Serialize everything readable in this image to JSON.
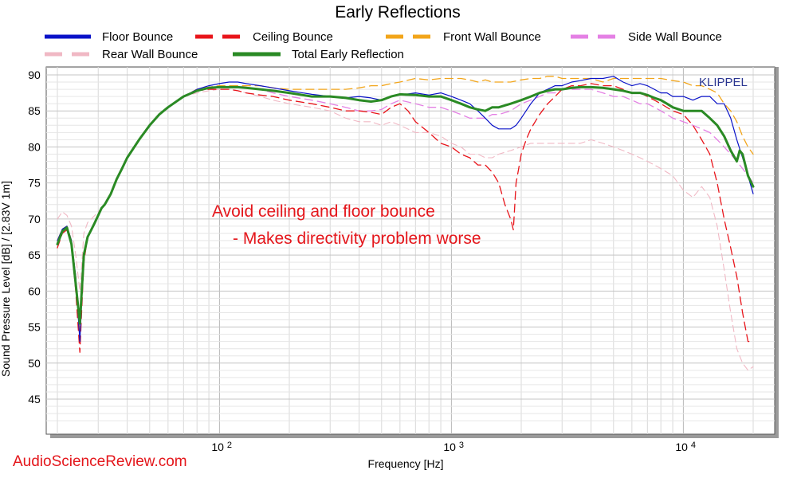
{
  "colors": {
    "floor": "#0a12c8",
    "ceiling": "#e8141a",
    "front": "#f2a51a",
    "side": "#e480e4",
    "rear": "#f0b8c4",
    "total": "#2a8a24",
    "annotation": "#e4161b",
    "watermark": "#2a3590"
  },
  "annotation": {
    "line1": "Avoid ceiling and floor bounce",
    "line2": "- Makes directivity problem worse"
  },
  "watermark": "KLIPPEL",
  "credit": "AudioScienceReview.com",
  "chart_data": {
    "type": "line",
    "title": "Early Reflections",
    "xlabel": "Frequency [Hz]",
    "ylabel": "Sound Pressure Level [dB]  / [2.83V 1m]",
    "x_scale": "log",
    "xlim": [
      20,
      20000
    ],
    "ylim": [
      42,
      91
    ],
    "x_ticks": [
      {
        "value": 100,
        "base": "10",
        "exp": "2"
      },
      {
        "value": 1000,
        "base": "10",
        "exp": "3"
      },
      {
        "value": 10000,
        "base": "10",
        "exp": "4"
      }
    ],
    "y_ticks": [
      "45",
      "50",
      "55",
      "60",
      "65",
      "70",
      "75",
      "80",
      "85",
      "90"
    ],
    "y_tick_values": [
      45,
      50,
      55,
      60,
      65,
      70,
      75,
      80,
      85,
      90
    ],
    "grid": true,
    "legend": "top",
    "series": [
      {
        "name": "Floor Bounce",
        "key": "floor",
        "dash": "",
        "width": 1.2,
        "x": [
          20,
          21,
          22,
          23,
          24,
          25,
          26,
          27,
          28,
          29,
          30,
          31,
          32,
          34,
          36,
          38,
          40,
          45,
          50,
          55,
          60,
          70,
          80,
          90,
          100,
          110,
          120,
          130,
          150,
          170,
          200,
          250,
          300,
          350,
          400,
          450,
          500,
          550,
          600,
          700,
          800,
          900,
          1000,
          1100,
          1200,
          1300,
          1400,
          1500,
          1600,
          1700,
          1800,
          1900,
          2000,
          2200,
          2400,
          2600,
          2800,
          3000,
          3300,
          3600,
          4000,
          4500,
          5000,
          5500,
          6000,
          6500,
          7000,
          7500,
          8000,
          8500,
          9000,
          10000,
          11000,
          12000,
          13000,
          14000,
          15000,
          16000,
          17000,
          18000,
          19000,
          20000
        ],
        "y": [
          67,
          68.6,
          69,
          67,
          62,
          53,
          65,
          67.5,
          68.5,
          69.5,
          70.5,
          71.5,
          72,
          73.5,
          75.5,
          77,
          78.5,
          81,
          83,
          84.5,
          85.5,
          87,
          88,
          88.5,
          88.8,
          89,
          89,
          88.8,
          88.5,
          88.2,
          87.8,
          87.3,
          87,
          86.8,
          87,
          86.8,
          86.5,
          87,
          87.2,
          87.5,
          87.2,
          87.5,
          87,
          86.5,
          86,
          85,
          84,
          83,
          82.5,
          82.5,
          82.5,
          83,
          84,
          86,
          87.5,
          88,
          88.5,
          88.5,
          89,
          89.2,
          89.5,
          89.5,
          89.8,
          89,
          88.5,
          88.8,
          88.5,
          88,
          87.5,
          87.5,
          87,
          87,
          86.5,
          87,
          87,
          86,
          86,
          84,
          81,
          78.5,
          76,
          73.5
        ]
      },
      {
        "name": "Ceiling Bounce",
        "key": "ceiling",
        "dash": "10,6",
        "width": 1.3,
        "x": [
          20,
          21,
          22,
          23,
          24,
          25,
          26,
          27,
          28,
          29,
          30,
          31,
          32,
          34,
          36,
          38,
          40,
          45,
          50,
          55,
          60,
          70,
          80,
          90,
          100,
          110,
          120,
          130,
          150,
          170,
          200,
          250,
          300,
          350,
          400,
          450,
          500,
          550,
          600,
          650,
          700,
          800,
          900,
          1000,
          1100,
          1200,
          1300,
          1400,
          1500,
          1600,
          1700,
          1800,
          1850,
          1900,
          1950,
          2000,
          2100,
          2200,
          2400,
          2600,
          2800,
          3000,
          3300,
          3600,
          4000,
          4500,
          5000,
          5500,
          6000,
          6500,
          7000,
          7500,
          8000,
          9000,
          10000,
          11000,
          12000,
          13000,
          14000,
          15000,
          16000,
          17000,
          18000,
          18500,
          19000,
          19500,
          20000
        ],
        "y": [
          66,
          68,
          68.5,
          66.5,
          60,
          51.5,
          64,
          67.5,
          68.5,
          69.5,
          70.5,
          71.5,
          72,
          73.5,
          75.5,
          77,
          78.5,
          81,
          83,
          84.5,
          85.5,
          87,
          87.8,
          88,
          88,
          88,
          87.8,
          87.5,
          87.2,
          87,
          86.5,
          86,
          85.5,
          85,
          85,
          84.8,
          84.5,
          85.5,
          86,
          85,
          83.5,
          82,
          80.5,
          80,
          79,
          78.5,
          77.5,
          77.5,
          76.5,
          75,
          72,
          70,
          68.5,
          75,
          77,
          79,
          81,
          82.5,
          84.5,
          86,
          87,
          88,
          88.5,
          88.5,
          88.8,
          88.5,
          88.5,
          88,
          87.5,
          87.5,
          87,
          86.5,
          86,
          85,
          84.5,
          83,
          81,
          79,
          75,
          70,
          66,
          62,
          57,
          55,
          53,
          53,
          53
        ]
      },
      {
        "name": "Front Wall Bounce",
        "key": "front",
        "dash": "10,6",
        "width": 1.3,
        "x": [
          20,
          21,
          22,
          23,
          24,
          25,
          26,
          27,
          28,
          29,
          30,
          31,
          32,
          34,
          36,
          38,
          40,
          45,
          50,
          55,
          60,
          70,
          80,
          90,
          100,
          110,
          120,
          130,
          150,
          170,
          200,
          250,
          300,
          350,
          400,
          450,
          500,
          550,
          600,
          700,
          800,
          900,
          1000,
          1100,
          1200,
          1300,
          1400,
          1500,
          1600,
          1800,
          2000,
          2200,
          2400,
          2600,
          2800,
          3000,
          3300,
          3600,
          4000,
          4500,
          5000,
          5500,
          6000,
          6500,
          7000,
          7500,
          8000,
          9000,
          10000,
          11000,
          12000,
          13000,
          14000,
          15000,
          16000,
          17000,
          18000,
          19000,
          20000
        ],
        "y": [
          67,
          68.6,
          69,
          67,
          62,
          54,
          65,
          67.5,
          68.5,
          69.5,
          70.5,
          71.5,
          72,
          73.5,
          75.5,
          77,
          78.5,
          81,
          83,
          84.5,
          85.5,
          87,
          88,
          88.3,
          88.5,
          88.5,
          88.5,
          88.5,
          88.5,
          88.2,
          88,
          88,
          88,
          88,
          88.2,
          88.5,
          88.5,
          88.8,
          89,
          89.5,
          89.3,
          89.5,
          89.5,
          89.5,
          89.3,
          89,
          89.3,
          89,
          89,
          89,
          89.3,
          89.5,
          89.5,
          89.8,
          89.8,
          89.5,
          89.5,
          89.5,
          89.5,
          89,
          89.5,
          89.5,
          89.5,
          89.5,
          89.5,
          89.5,
          89.5,
          89.2,
          89,
          88.5,
          88.5,
          88,
          87.5,
          86,
          85,
          83.5,
          81.5,
          80,
          79
        ]
      },
      {
        "name": "Side Wall Bounce",
        "key": "side",
        "dash": "10,6",
        "width": 1.3,
        "x": [
          20,
          21,
          22,
          23,
          24,
          25,
          26,
          27,
          28,
          29,
          30,
          31,
          32,
          34,
          36,
          38,
          40,
          45,
          50,
          55,
          60,
          70,
          80,
          90,
          100,
          110,
          120,
          130,
          150,
          170,
          200,
          250,
          300,
          350,
          400,
          450,
          500,
          550,
          600,
          700,
          800,
          900,
          1000,
          1100,
          1200,
          1300,
          1400,
          1500,
          1600,
          1800,
          2000,
          2200,
          2400,
          2600,
          2800,
          3000,
          3300,
          3600,
          4000,
          4500,
          5000,
          5500,
          6000,
          6500,
          7000,
          7500,
          8000,
          8500,
          9000,
          10000,
          11000,
          12000,
          13000,
          14000,
          15000,
          16000,
          17000,
          18000,
          19000,
          20000
        ],
        "y": [
          67,
          68.6,
          69,
          67,
          62,
          54,
          65,
          67.5,
          68.5,
          69.5,
          70.5,
          71.5,
          72,
          73.5,
          75.5,
          77,
          78.5,
          81,
          83,
          84.5,
          85.5,
          87,
          88,
          88.3,
          88.5,
          88.5,
          88.5,
          88.3,
          88,
          87.5,
          87,
          86.5,
          86,
          85.5,
          85,
          85,
          85.2,
          86,
          86.5,
          86,
          85.5,
          85.5,
          85,
          84.5,
          84,
          84,
          84,
          84.5,
          84.5,
          85,
          86,
          86.5,
          87,
          87.5,
          87.5,
          88,
          88,
          88,
          88,
          87.5,
          87,
          87,
          86.5,
          86,
          86,
          85.5,
          85,
          84.5,
          84,
          83.5,
          83,
          82.5,
          82,
          81,
          80,
          79,
          78,
          77,
          76,
          75
        ]
      },
      {
        "name": "Rear Wall Bounce",
        "key": "rear",
        "dash": "8,5",
        "width": 1.1,
        "x": [
          20,
          21,
          22,
          23,
          24,
          25,
          26,
          27,
          28,
          29,
          30,
          31,
          32,
          34,
          36,
          38,
          40,
          45,
          50,
          55,
          60,
          70,
          80,
          90,
          100,
          110,
          120,
          130,
          150,
          170,
          200,
          250,
          300,
          350,
          400,
          450,
          500,
          550,
          600,
          700,
          800,
          900,
          1000,
          1100,
          1200,
          1300,
          1400,
          1500,
          1600,
          1800,
          2000,
          2200,
          2400,
          2600,
          2800,
          3000,
          3300,
          3600,
          4000,
          4500,
          5000,
          5500,
          6000,
          6500,
          7000,
          7500,
          8000,
          9000,
          10000,
          11000,
          12000,
          13000,
          14000,
          15000,
          16000,
          17000,
          18000,
          19000,
          20000
        ],
        "y": [
          70,
          71,
          70.5,
          69,
          65,
          60,
          68,
          69.5,
          70,
          70.5,
          71,
          71.5,
          72,
          73.5,
          75.5,
          77,
          78.5,
          81,
          83,
          84.5,
          85.5,
          87,
          87.5,
          87.8,
          88,
          88,
          87.8,
          87.5,
          87,
          86.5,
          86,
          85.5,
          85,
          84,
          83.5,
          83.5,
          83,
          83.5,
          83,
          82,
          82,
          81.5,
          80.5,
          80,
          79,
          79,
          78.5,
          78.5,
          79,
          79.5,
          80,
          80.5,
          80.5,
          80.5,
          80.5,
          80.5,
          80.5,
          80.5,
          81,
          80.5,
          80,
          79.5,
          79,
          78.5,
          78,
          77.5,
          77,
          76,
          74,
          73,
          74.5,
          73,
          69,
          63,
          57,
          52,
          50,
          49,
          49.5
        ]
      },
      {
        "name": "Total Early Reflection",
        "key": "total",
        "dash": "",
        "width": 3,
        "x": [
          20,
          21,
          22,
          23,
          24,
          25,
          26,
          27,
          28,
          29,
          30,
          31,
          32,
          34,
          36,
          38,
          40,
          45,
          50,
          55,
          60,
          70,
          80,
          90,
          100,
          110,
          120,
          130,
          150,
          170,
          200,
          250,
          300,
          350,
          400,
          450,
          500,
          550,
          600,
          700,
          800,
          900,
          1000,
          1100,
          1200,
          1300,
          1400,
          1500,
          1600,
          1800,
          2000,
          2200,
          2400,
          2600,
          2800,
          3000,
          3300,
          3600,
          4000,
          4500,
          5000,
          5500,
          6000,
          6500,
          7000,
          7500,
          8000,
          8500,
          9000,
          10000,
          11000,
          12000,
          13000,
          14000,
          15000,
          16000,
          17000,
          17500,
          18000,
          19000,
          20000
        ],
        "y": [
          66.5,
          68.3,
          68.8,
          66.5,
          61,
          55.5,
          65,
          67.5,
          68.5,
          69.5,
          70.5,
          71.5,
          72,
          73.5,
          75.5,
          77,
          78.5,
          81,
          83,
          84.5,
          85.5,
          87,
          87.8,
          88.2,
          88.3,
          88.3,
          88.3,
          88.2,
          88,
          87.8,
          87.5,
          87,
          87,
          86.8,
          86.5,
          86.3,
          86.5,
          87,
          87.3,
          87.2,
          87,
          87,
          86.5,
          86,
          85.5,
          85.2,
          85,
          85.5,
          85.5,
          86,
          86.5,
          87,
          87.5,
          87.8,
          88,
          88,
          88.2,
          88.3,
          88.3,
          88.2,
          88,
          87.8,
          87.5,
          87.5,
          87.2,
          86.8,
          86.5,
          86,
          85.5,
          85,
          85,
          85,
          84,
          83,
          81.5,
          79.5,
          78,
          79.5,
          79,
          76,
          74.5
        ]
      }
    ]
  }
}
